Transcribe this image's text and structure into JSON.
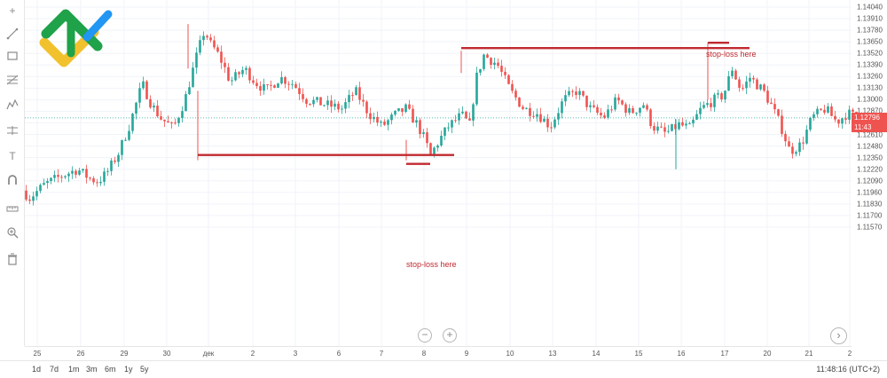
{
  "toolbar": {
    "items": [
      {
        "icon": "crosshair-icon",
        "glyph": "+"
      },
      {
        "icon": "trend-line-icon"
      },
      {
        "icon": "rectangle-icon"
      },
      {
        "icon": "fib-retracement-icon"
      },
      {
        "icon": "pattern-icon"
      },
      {
        "icon": "measure-icon"
      },
      {
        "icon": "text-icon",
        "glyph": "T"
      },
      {
        "icon": "magnet-icon"
      },
      {
        "icon": "ruler-icon"
      },
      {
        "icon": "zoom-in-icon"
      },
      {
        "icon": "trash-icon"
      }
    ]
  },
  "price_badges": {
    "current_price": "1.12796",
    "countdown": "11:43",
    "color": "#ef5350"
  },
  "annotations": {
    "top_label": "stop-loss here",
    "bottom_label": "stop-loss here",
    "line_color": "#c0292f"
  },
  "zoom": {
    "minus": "−",
    "plus": "+"
  },
  "scroll_right_glyph": "›",
  "bottom_bar": {
    "ranges": [
      "1d",
      "7d",
      "1m",
      "3m",
      "6m",
      "1y",
      "5y"
    ],
    "clock": "11:48:16 (UTC+2)"
  },
  "colors": {
    "up": "#26a69a",
    "down": "#ef5350",
    "grid": "#f0f3fa"
  },
  "chart_data": {
    "type": "candlestick",
    "title": "",
    "xlabel": "",
    "ylabel": "",
    "y_ticks": [
      "1.14040",
      "1.13910",
      "1.13780",
      "1.13650",
      "1.13520",
      "1.13390",
      "1.13260",
      "1.13130",
      "1.13000",
      "1.12870",
      "1.12740",
      "1.12610",
      "1.12480",
      "1.12350",
      "1.12220",
      "1.12090",
      "1.11960",
      "1.11830",
      "1.11700",
      "1.11570"
    ],
    "x_ticks": [
      "25",
      "26",
      "29",
      "30",
      "дек",
      "2",
      "3",
      "6",
      "7",
      "8",
      "9",
      "10",
      "13",
      "14",
      "15",
      "16",
      "17",
      "20",
      "21",
      "2"
    ],
    "ylim": [
      1.115,
      1.141
    ],
    "current_price": 1.12796,
    "path": [
      [
        0,
        1.1198
      ],
      [
        8,
        1.119
      ],
      [
        25,
        1.1205
      ],
      [
        45,
        1.1215
      ],
      [
        62,
        1.1222
      ],
      [
        75,
        1.1212
      ],
      [
        85,
        1.1208
      ],
      [
        95,
        1.1218
      ],
      [
        108,
        1.124
      ],
      [
        120,
        1.127
      ],
      [
        135,
        1.1318
      ],
      [
        145,
        1.1295
      ],
      [
        155,
        1.128
      ],
      [
        170,
        1.1268
      ],
      [
        183,
        1.13
      ],
      [
        195,
        1.1345
      ],
      [
        205,
        1.1378
      ],
      [
        212,
        1.1362
      ],
      [
        218,
        1.1355
      ],
      [
        226,
        1.134
      ],
      [
        234,
        1.132
      ],
      [
        250,
        1.1335
      ],
      [
        262,
        1.132
      ],
      [
        275,
        1.131
      ],
      [
        290,
        1.1325
      ],
      [
        305,
        1.1318
      ],
      [
        320,
        1.13
      ],
      [
        340,
        1.1295
      ],
      [
        360,
        1.129
      ],
      [
        375,
        1.131
      ],
      [
        390,
        1.1285
      ],
      [
        405,
        1.127
      ],
      [
        420,
        1.1283
      ],
      [
        432,
        1.129
      ],
      [
        445,
        1.1272
      ],
      [
        452,
        1.1258
      ],
      [
        460,
        1.1238
      ],
      [
        470,
        1.1255
      ],
      [
        480,
        1.127
      ],
      [
        495,
        1.1283
      ],
      [
        505,
        1.127
      ],
      [
        510,
        1.132
      ],
      [
        520,
        1.135
      ],
      [
        535,
        1.134
      ],
      [
        550,
        1.131
      ],
      [
        565,
        1.129
      ],
      [
        580,
        1.1285
      ],
      [
        595,
        1.127
      ],
      [
        610,
        1.13
      ],
      [
        625,
        1.131
      ],
      [
        640,
        1.129
      ],
      [
        655,
        1.128
      ],
      [
        670,
        1.13
      ],
      [
        685,
        1.1285
      ],
      [
        700,
        1.1295
      ],
      [
        710,
        1.127
      ],
      [
        725,
        1.1262
      ],
      [
        740,
        1.1272
      ],
      [
        752,
        1.1268
      ],
      [
        765,
        1.129
      ],
      [
        780,
        1.13
      ],
      [
        790,
        1.1305
      ],
      [
        800,
        1.1335
      ],
      [
        810,
        1.131
      ],
      [
        820,
        1.1325
      ],
      [
        835,
        1.131
      ],
      [
        845,
        1.1292
      ],
      [
        855,
        1.127
      ],
      [
        865,
        1.1242
      ],
      [
        878,
        1.125
      ],
      [
        890,
        1.128
      ],
      [
        905,
        1.129
      ],
      [
        918,
        1.1275
      ],
      [
        930,
        1.1285
      ],
      [
        942,
        1.128
      ],
      [
        950,
        1.127
      ],
      [
        958,
        1.128
      ]
    ],
    "candle_step": 4,
    "spikes": [
      {
        "x": 212,
        "high": 1.1385,
        "low": 1.1335
      },
      {
        "x": 223,
        "high": 1.131,
        "low": 1.1232
      },
      {
        "x": 458,
        "high": 1.1255,
        "low": 1.1232
      },
      {
        "x": 520,
        "high": 1.1355,
        "low": 1.133
      },
      {
        "x": 762,
        "high": 1.1278,
        "low": 1.1222
      },
      {
        "x": 798,
        "high": 1.1364,
        "low": 1.13
      }
    ],
    "annotation_lines": [
      {
        "x_start": 520,
        "x_end": 845,
        "y": 1.1358
      },
      {
        "x_start": 798,
        "x_end": 822,
        "y": 1.1364
      },
      {
        "x_start": 223,
        "x_end": 512,
        "y": 1.1238
      },
      {
        "x_start": 458,
        "x_end": 485,
        "y": 1.1228
      }
    ]
  }
}
